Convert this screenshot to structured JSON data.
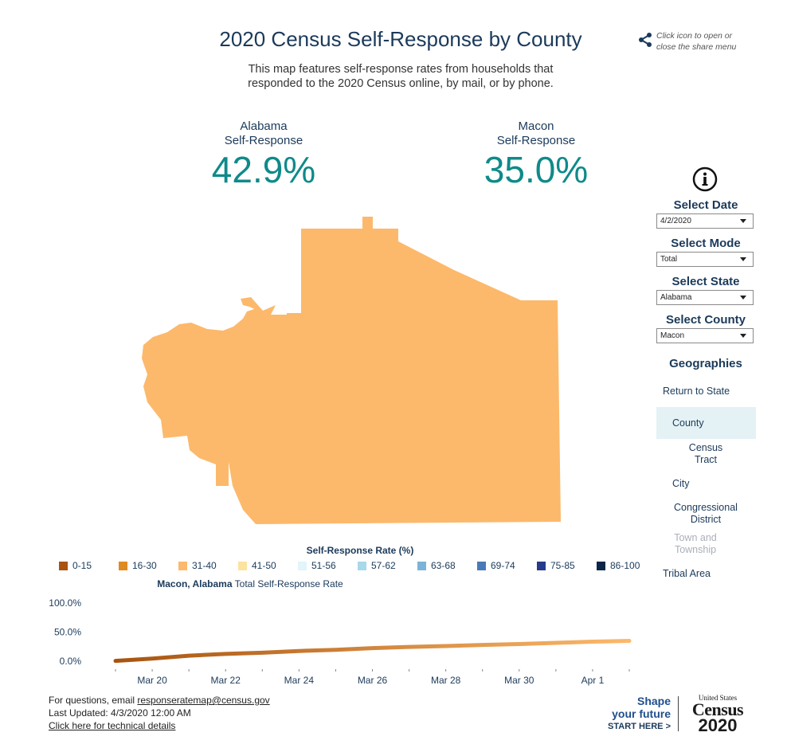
{
  "header": {
    "title": "2020 Census Self-Response by County",
    "subtitle_line1": "This map features self-response rates from households that",
    "subtitle_line2": "responded to the 2020 Census online, by mail, or by phone.",
    "share_line1": "Click icon to open or",
    "share_line2": "close the share menu"
  },
  "stats": {
    "state": {
      "label_line1": "Alabama",
      "label_line2": "Self-Response",
      "value": "42.9%"
    },
    "county": {
      "label_line1": "Macon",
      "label_line2": "Self-Response",
      "value": "35.0%"
    }
  },
  "map": {
    "region": "Macon",
    "fill_color": "#fcb96b",
    "bin": "31-40"
  },
  "sidebar": {
    "info_icon": "info-circle-icon",
    "selects": [
      {
        "heading": "Select Date",
        "value": "4/2/2020"
      },
      {
        "heading": "Select Mode",
        "value": "Total"
      },
      {
        "heading": "Select State",
        "value": "Alabama"
      },
      {
        "heading": "Select County",
        "value": "Macon"
      }
    ],
    "geographies_heading": "Geographies",
    "geographies": {
      "return": "Return to State",
      "county": "County",
      "tract_line1": "Census",
      "tract_line2": "Tract",
      "city": "City",
      "cong_line1": "Congressional",
      "cong_line2": "District",
      "town_line1": "Town and",
      "town_line2": "Township",
      "tribal": "Tribal Area"
    }
  },
  "legend": {
    "title": "Self-Response Rate (%)",
    "items": [
      {
        "label": "0-15",
        "color": "#a8530f"
      },
      {
        "label": "16-30",
        "color": "#e08a22"
      },
      {
        "label": "31-40",
        "color": "#fcb96b"
      },
      {
        "label": "41-50",
        "color": "#fde3a0"
      },
      {
        "label": "51-56",
        "color": "#e3f4fa"
      },
      {
        "label": "57-62",
        "color": "#a9d8ea"
      },
      {
        "label": "63-68",
        "color": "#7cb4d8"
      },
      {
        "label": "69-74",
        "color": "#4a79b8"
      },
      {
        "label": "75-85",
        "color": "#273a8c"
      },
      {
        "label": "86-100",
        "color": "#0b2647"
      }
    ]
  },
  "chart_data": {
    "type": "line",
    "title_bold": "Macon, Alabama",
    "title_rest": "Total Self-Response Rate",
    "x": [
      "Mar 19",
      "Mar 20",
      "Mar 21",
      "Mar 22",
      "Mar 23",
      "Mar 24",
      "Mar 25",
      "Mar 26",
      "Mar 27",
      "Mar 28",
      "Mar 29",
      "Mar 30",
      "Mar 31",
      "Apr 1",
      "Apr 2"
    ],
    "x_tick_labels": [
      "Mar 20",
      "Mar 22",
      "Mar 24",
      "Mar 26",
      "Mar 28",
      "Mar 30",
      "Apr 1"
    ],
    "y_tick_labels": [
      "100.0%",
      "50.0%",
      "0.0%"
    ],
    "ylim": [
      0,
      100
    ],
    "series": [
      {
        "values": [
          0.5,
          4.5,
          9.5,
          12.5,
          14.5,
          17.5,
          19.5,
          22.5,
          24.5,
          26,
          28,
          29.5,
          31.5,
          33.5,
          35.0
        ]
      }
    ],
    "line_color_start": "#a8530f",
    "line_color_end": "#fcb96b"
  },
  "footer": {
    "questions_prefix": "For questions, email ",
    "email": "responseratemap@census.gov",
    "updated": "Last Updated: 4/3/2020 12:00 AM",
    "tech_link": "Click here for technical details"
  },
  "branding": {
    "shape_line1": "Shape",
    "shape_line2": "your future",
    "start_here": "START HERE >",
    "us": "United States",
    "census": "Census",
    "year": "2020"
  }
}
